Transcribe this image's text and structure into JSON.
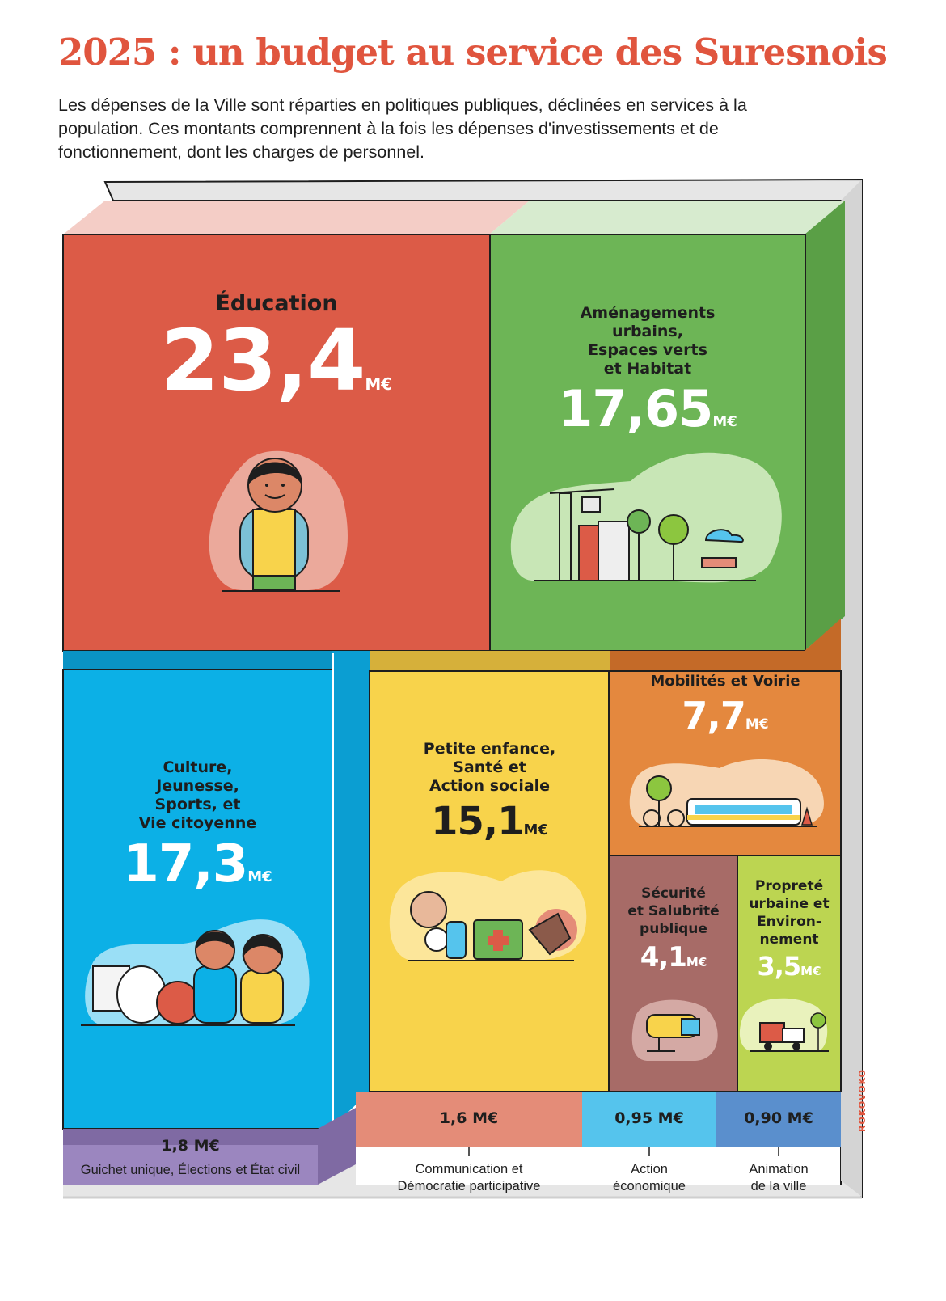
{
  "header": {
    "title": "2025 : un budget au service des Suresnois",
    "subtitle": "Les dépenses de la Ville sont réparties en politiques publiques, déclinées en services à la population. Ces montants comprennent à la fois les dépenses d'investissements et de fonctionnement, dont les charges de personnel."
  },
  "unit": "M€",
  "blocks": {
    "education": {
      "label": "Éducation",
      "amount": "23,4",
      "value": 23.4,
      "color": "#dc5b47"
    },
    "amenagements": {
      "label_lines": [
        "Aménagements",
        "urbains,",
        "Espaces verts",
        "et Habitat"
      ],
      "amount": "17,65",
      "value": 17.65,
      "color": "#6db556"
    },
    "culture": {
      "label_lines": [
        "Culture,",
        "Jeunesse,",
        "Sports, et",
        "Vie citoyenne"
      ],
      "amount": "17,3",
      "value": 17.3,
      "color": "#0cb0e6"
    },
    "petite_enfance": {
      "label_lines": [
        "Petite enfance,",
        "Santé et",
        "Action sociale"
      ],
      "amount": "15,1",
      "value": 15.1,
      "color": "#f8d34b"
    },
    "mobilites": {
      "label": "Mobilités et Voirie",
      "amount": "7,7",
      "value": 7.7,
      "color": "#e4883e"
    },
    "securite": {
      "label_lines": [
        "Sécurité",
        "et Salubrité",
        "publique"
      ],
      "amount": "4,1",
      "value": 4.1,
      "color": "#a76b67"
    },
    "proprete": {
      "label_lines": [
        "Propreté",
        "urbaine et",
        "Environ-",
        "nement"
      ],
      "amount": "3,5",
      "value": 3.5,
      "color": "#bcd551"
    }
  },
  "small": {
    "guichet": {
      "amount": "1,8 M€",
      "value": 1.8,
      "caption": "Guichet unique, Élections et État civil",
      "color": "#9b86bf"
    },
    "communication": {
      "amount": "1,6 M€",
      "value": 1.6,
      "caption_lines": [
        "Communication et",
        "Démocratie participative"
      ],
      "color": "#e48c78"
    },
    "action_eco": {
      "amount": "0,95 M€",
      "value": 0.95,
      "caption_lines": [
        "Action",
        "économique"
      ],
      "color": "#55c4ed"
    },
    "animation": {
      "amount": "0,90 M€",
      "value": 0.9,
      "caption_lines": [
        "Animation",
        "de la ville"
      ],
      "color": "#5a8fcd"
    }
  },
  "credit": "ROKOVOKO"
}
